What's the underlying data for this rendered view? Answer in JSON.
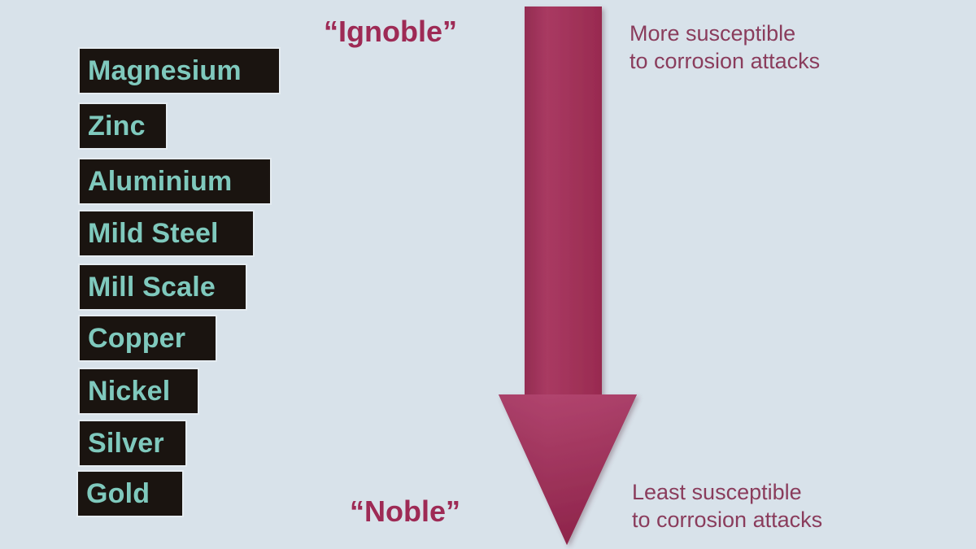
{
  "metals": [
    "Magnesium",
    "Zinc",
    "Aluminium",
    "Mild Steel",
    "Mill Scale",
    "Copper",
    "Nickel",
    "Silver",
    "Gold"
  ],
  "labels": {
    "top": "“Ignoble”",
    "bottom": "“Noble”"
  },
  "notes": {
    "top_line1": "More susceptible",
    "top_line2": "to corrosion attacks",
    "bottom_line1": "Least susceptible",
    "bottom_line2": "to corrosion attacks"
  },
  "colors": {
    "background": "#d8e2ea",
    "arrow": "#9b2c52",
    "metal_box": "#1a1410",
    "metal_text": "#7fc9bd",
    "label_text": "#9e2a55"
  }
}
